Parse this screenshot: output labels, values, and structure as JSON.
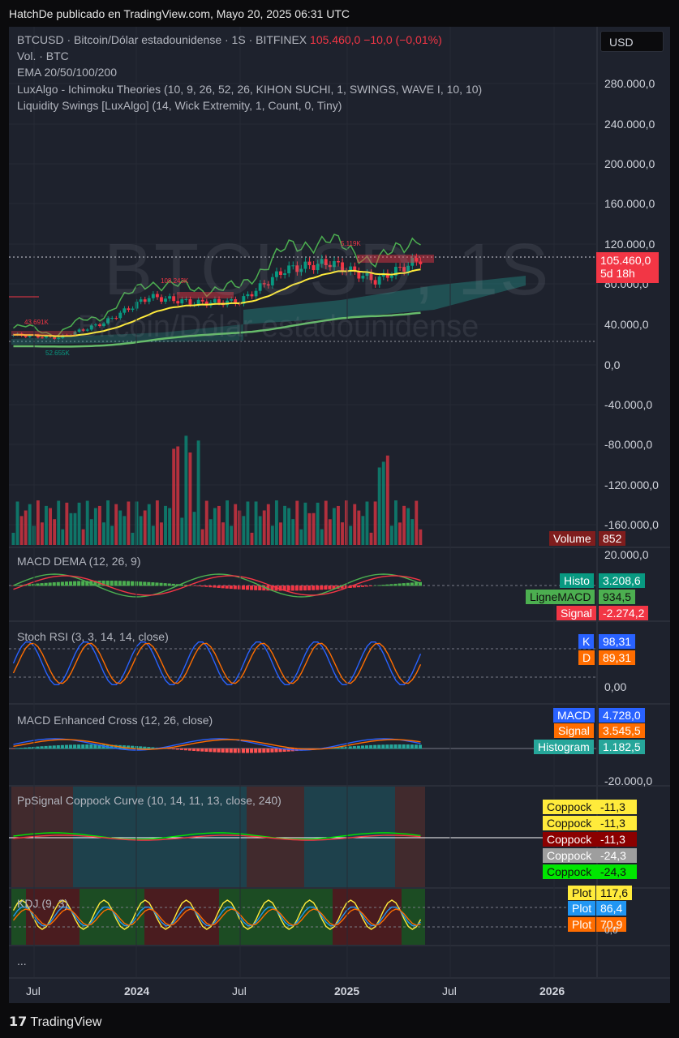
{
  "caption": "HatchDe publicado en TradingView.com, Mayo 20, 2025 06:31 UTC",
  "currency_button": "USD",
  "header": {
    "symbol": "BTCUSD · Bitcoin/Dólar estadounidense · 1S · BITFINEX",
    "price": "105.460,0",
    "change": "−10,0 (−0,01%)",
    "vol": "Vol. · BTC",
    "ema": "EMA 20/50/100/200",
    "ichimoku": "LuxAlgo - Ichimoku Theories (10, 9, 26, 52, 26, KIHON SUCHI, 1, SWINGS, WAVE I, 10, 10)",
    "liquidity": "Liquidity Swings [LuxAlgo] (14, Wick Extremity, 1, Count, 0, Tiny)"
  },
  "watermark": {
    "symbol": "BTCUSD, 1S",
    "name": "Bitcoin/Dólar estadounidense"
  },
  "price_axis": [
    "280.000,0",
    "240.000,0",
    "200.000,0",
    "160.000,0",
    "120.000,0",
    "80.000,0",
    "40.000,0",
    "0,0",
    "-40.000,0",
    "-80.000,0",
    "-120.000,0",
    "-160.000,0"
  ],
  "price_tag": {
    "price": "105.460,0",
    "countdown": "5d 18h"
  },
  "swing_labels": [
    "5.119K",
    "108.243K",
    "43.691K",
    "52.655K"
  ],
  "volume_tag": {
    "label": "Volume",
    "value": "852"
  },
  "macd_dema": {
    "title": "MACD DEMA (12, 26, 9)",
    "axis_top": "20.000,0",
    "histo_label": "Histo",
    "histo": "3.208,6",
    "macd_label": "LigneMACD",
    "macd": "934,5",
    "signal_label": "Signal",
    "signal": "-2.274,2"
  },
  "stoch": {
    "title": "Stoch RSI (3, 3, 14, 14, close)",
    "k_label": "K",
    "k": "98,31",
    "d_label": "D",
    "d": "89,31",
    "axis": "0,00"
  },
  "macd_enh": {
    "title": "MACD Enhanced Cross (12, 26, close)",
    "macd_label": "MACD",
    "macd": "4.728,0",
    "signal_label": "Signal",
    "signal": "3.545,5",
    "hist_label": "Histogram",
    "hist": "1.182,5",
    "axis": "-20.000,0"
  },
  "coppock": {
    "title": "PpSignal Coppock Curve (10, 14, 11, 13, close, 240)",
    "rows": [
      {
        "label": "Coppock",
        "value": "-11,3"
      },
      {
        "label": "Coppock",
        "value": "-11,3"
      },
      {
        "label": "Coppock",
        "value": "-11,3"
      },
      {
        "label": "Coppock",
        "value": "-24,3"
      },
      {
        "label": "Coppock",
        "value": "-24,3"
      }
    ]
  },
  "kdj": {
    "title": "KDJ (9, 3)",
    "rows": [
      {
        "label": "Plot",
        "value": "117,6"
      },
      {
        "label": "Plot",
        "value": "86,4"
      },
      {
        "label": "Plot",
        "value": "70,9"
      }
    ],
    "axis": "0,0"
  },
  "collapsed": "...",
  "time_axis": [
    "Jul",
    "2024",
    "Jul",
    "2025",
    "Jul",
    "2026"
  ],
  "footer": "TradingView",
  "colors": {
    "up": "#089981",
    "down": "#f23645",
    "ema_short": "#4caf50",
    "ema_long": "#ffeb3b",
    "ema_slow": "#66bb6a",
    "bg": "#1e222d"
  },
  "chart_data": {
    "type": "candlestick",
    "symbol": "BTCUSD",
    "timeframe": "1S",
    "x": [
      "2023-06",
      "2023-09",
      "2023-12",
      "2024-03",
      "2024-06",
      "2024-09",
      "2024-12",
      "2025-01",
      "2025-03",
      "2025-05"
    ],
    "close": [
      30000,
      27000,
      42000,
      68000,
      62000,
      63000,
      95000,
      102000,
      84000,
      105460
    ],
    "ylim": [
      -180000,
      300000
    ]
  }
}
